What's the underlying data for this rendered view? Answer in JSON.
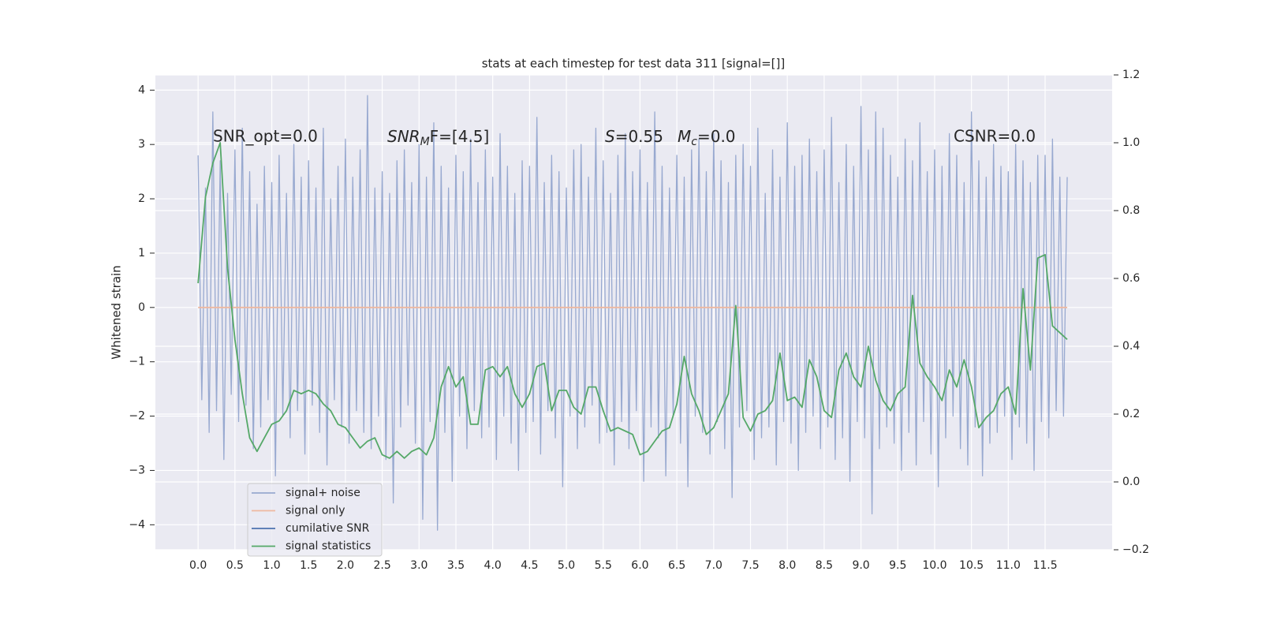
{
  "chart_data": {
    "type": "line",
    "title": "stats at each timestep for test data 311 [signal=[]]",
    "ylabel": "Whitened strain",
    "annotations": [
      [
        "SNR_opt=0.0"
      ],
      [
        "SNR",
        "M",
        "F=[4.5]"
      ],
      [
        "S",
        "=0.55"
      ],
      [
        "M",
        "c",
        "=0.0"
      ],
      [
        "CSNR=0.0"
      ]
    ],
    "xlim": [
      -0.58,
      12.41
    ],
    "ylim": [
      -4.46,
      4.28
    ],
    "y2lim": [
      -0.2,
      1.2
    ],
    "xticks": [
      {
        "value": 0,
        "label": "0.0"
      },
      0.5,
      {
        "value": 1,
        "label": "1.0"
      },
      1.5,
      {
        "value": 2,
        "label": "2.0"
      },
      2.5,
      {
        "value": 3,
        "label": "3.0"
      },
      3.5,
      {
        "value": 4,
        "label": "4.0"
      },
      4.5,
      {
        "value": 5,
        "label": "5.0"
      },
      5.5,
      {
        "value": 6,
        "label": "6.0"
      },
      6.5,
      {
        "value": 7,
        "label": "7.0"
      },
      7.5,
      {
        "value": 8,
        "label": "8.0"
      },
      8.5,
      {
        "value": 9,
        "label": "9.0"
      },
      9.5,
      {
        "value": 10,
        "label": "10.0"
      },
      10.5,
      {
        "value": 11,
        "label": "11.0"
      },
      11.5
    ],
    "yticks": [
      {
        "value": -4,
        "label": "−4"
      },
      {
        "value": -3,
        "label": "−3"
      },
      {
        "value": -2,
        "label": "−2"
      },
      {
        "value": -1,
        "label": "−1"
      },
      0,
      1,
      2,
      3,
      4
    ],
    "y2ticks": [
      {
        "value": -0.2,
        "label": "−0.2"
      },
      {
        "value": 0,
        "label": "0.0"
      },
      0.2,
      0.4,
      0.6,
      0.8,
      {
        "value": 1,
        "label": "1.0"
      },
      1.2
    ],
    "grid": true,
    "legend": "lower left",
    "series": [
      {
        "name": "signal+ noise",
        "color": "#98a9d0",
        "x": [
          0,
          0.05,
          0.1,
          0.15,
          0.2,
          0.25,
          0.3,
          0.35,
          0.4,
          0.45,
          0.5,
          0.55,
          0.6,
          0.65,
          0.7,
          0.75,
          0.8,
          0.85,
          0.9,
          0.95,
          1,
          1.05,
          1.1,
          1.15,
          1.2,
          1.25,
          1.3,
          1.35,
          1.4,
          1.45,
          1.5,
          1.55,
          1.6,
          1.65,
          1.7,
          1.75,
          1.8,
          1.85,
          1.9,
          1.95,
          2,
          2.05,
          2.1,
          2.15,
          2.2,
          2.25,
          2.3,
          2.35,
          2.4,
          2.45,
          2.5,
          2.55,
          2.6,
          2.65,
          2.7,
          2.75,
          2.8,
          2.85,
          2.9,
          2.95,
          3,
          3.05,
          3.1,
          3.15,
          3.2,
          3.25,
          3.3,
          3.35,
          3.4,
          3.45,
          3.5,
          3.55,
          3.6,
          3.65,
          3.7,
          3.75,
          3.8,
          3.85,
          3.9,
          3.95,
          4,
          4.05,
          4.1,
          4.15,
          4.2,
          4.25,
          4.3,
          4.35,
          4.4,
          4.45,
          4.5,
          4.55,
          4.6,
          4.65,
          4.7,
          4.75,
          4.8,
          4.85,
          4.9,
          4.95,
          5,
          5.05,
          5.1,
          5.15,
          5.2,
          5.25,
          5.3,
          5.35,
          5.4,
          5.45,
          5.5,
          5.55,
          5.6,
          5.65,
          5.7,
          5.75,
          5.8,
          5.85,
          5.9,
          5.95,
          6,
          6.05,
          6.1,
          6.15,
          6.2,
          6.25,
          6.3,
          6.35,
          6.4,
          6.45,
          6.5,
          6.55,
          6.6,
          6.65,
          6.7,
          6.75,
          6.8,
          6.85,
          6.9,
          6.95,
          7,
          7.05,
          7.1,
          7.15,
          7.2,
          7.25,
          7.3,
          7.35,
          7.4,
          7.45,
          7.5,
          7.55,
          7.6,
          7.65,
          7.7,
          7.75,
          7.8,
          7.85,
          7.9,
          7.95,
          8,
          8.05,
          8.1,
          8.15,
          8.2,
          8.25,
          8.3,
          8.35,
          8.4,
          8.45,
          8.5,
          8.55,
          8.6,
          8.65,
          8.7,
          8.75,
          8.8,
          8.85,
          8.9,
          8.95,
          9,
          9.05,
          9.1,
          9.15,
          9.2,
          9.25,
          9.3,
          9.35,
          9.4,
          9.45,
          9.5,
          9.55,
          9.6,
          9.65,
          9.7,
          9.75,
          9.8,
          9.85,
          9.9,
          9.95,
          10,
          10.05,
          10.1,
          10.15,
          10.2,
          10.25,
          10.3,
          10.35,
          10.4,
          10.45,
          10.5,
          10.55,
          10.6,
          10.65,
          10.7,
          10.75,
          10.8,
          10.85,
          10.9,
          10.95,
          11,
          11.05,
          11.1,
          11.15,
          11.2,
          11.25,
          11.3,
          11.35,
          11.4,
          11.45,
          11.5,
          11.55,
          11.6,
          11.65,
          11.7,
          11.75,
          11.8
        ],
        "values": [
          2.8,
          -1.7,
          2.2,
          -2.3,
          3.6,
          -1.9,
          2.7,
          -2.8,
          2.1,
          -1.6,
          2.9,
          -2.1,
          3.3,
          -1.8,
          2.5,
          -2.6,
          1.9,
          -2.2,
          2.6,
          -1.7,
          2.3,
          -3.1,
          2.8,
          -2.0,
          2.1,
          -2.4,
          3.0,
          -1.9,
          2.4,
          -2.7,
          2.7,
          -1.8,
          2.2,
          -2.3,
          3.3,
          -2.9,
          2.0,
          -1.7,
          2.6,
          -2.2,
          3.1,
          -2.5,
          2.4,
          -1.9,
          2.9,
          -2.3,
          3.9,
          -2.6,
          2.2,
          -2.0,
          2.5,
          -2.8,
          2.1,
          -3.6,
          2.7,
          -2.2,
          2.9,
          -1.8,
          2.3,
          -2.5,
          3.0,
          -3.9,
          2.4,
          -2.1,
          3.4,
          -4.1,
          2.6,
          -2.3,
          2.2,
          -3.2,
          2.8,
          -2.0,
          2.5,
          -2.6,
          3.1,
          -1.9,
          2.3,
          -2.4,
          2.9,
          -2.2,
          2.4,
          -2.8,
          3.2,
          -2.0,
          2.6,
          -2.5,
          2.1,
          -3.0,
          2.7,
          -2.3,
          2.6,
          -2.1,
          3.5,
          -2.7,
          2.3,
          -1.9,
          2.8,
          -2.4,
          2.5,
          -3.3,
          2.2,
          -2.0,
          2.9,
          -2.6,
          3.0,
          -2.2,
          2.4,
          -1.8,
          3.3,
          -2.5,
          2.7,
          -2.3,
          2.1,
          -2.9,
          2.8,
          -2.1,
          3.2,
          -2.6,
          2.5,
          -1.9,
          2.9,
          -3.2,
          2.3,
          -2.2,
          3.6,
          -2.4,
          2.6,
          -3.1,
          2.2,
          -2.0,
          2.8,
          -2.5,
          2.4,
          -3.3,
          2.9,
          -2.0,
          3.1,
          -2.3,
          2.5,
          -2.7,
          3.2,
          -2.1,
          2.7,
          -2.6,
          2.3,
          -3.5,
          2.8,
          -2.2,
          3.0,
          -1.9,
          2.6,
          -2.8,
          3.3,
          -2.4,
          2.1,
          -2.2,
          2.9,
          -2.9,
          2.4,
          -2.1,
          3.4,
          -2.5,
          2.6,
          -3.0,
          2.8,
          -2.3,
          3.1,
          -2.0,
          2.5,
          -2.6,
          2.9,
          -2.2,
          3.5,
          -2.8,
          2.3,
          -2.4,
          3.0,
          -3.2,
          2.6,
          -2.1,
          3.7,
          -2.4,
          2.9,
          -3.8,
          3.6,
          -2.6,
          3.3,
          -2.2,
          2.8,
          -2.5,
          2.4,
          -3.0,
          3.1,
          -2.3,
          2.7,
          -2.9,
          3.4,
          -2.1,
          2.5,
          -2.7,
          2.9,
          -3.3,
          2.6,
          -2.4,
          3.2,
          -2.0,
          2.8,
          -2.6,
          2.3,
          -2.9,
          3.6,
          -2.2,
          2.7,
          -3.1,
          2.4,
          -2.5,
          3.0,
          -2.3,
          2.6,
          -2.0,
          2.5,
          -2.8,
          3.0,
          -2.2,
          2.7,
          -2.5,
          2.3,
          -3.0,
          2.8,
          -2.1,
          2.8,
          -2.4,
          3.1,
          -1.9,
          2.4,
          -2.0,
          2.4
        ]
      },
      {
        "name": "signal only",
        "color": "#eeb8a0",
        "x": [
          0,
          11.8
        ],
        "values": [
          0,
          0
        ]
      },
      {
        "name": "cumilative SNR",
        "color": "#4c72b0",
        "x": [],
        "values": []
      },
      {
        "name": "signal statistics",
        "color": "#55a868",
        "axis": "y2",
        "x": [
          0,
          0.1,
          0.2,
          0.3,
          0.4,
          0.5,
          0.6,
          0.7,
          0.8,
          0.9,
          1,
          1.1,
          1.2,
          1.3,
          1.4,
          1.5,
          1.6,
          1.7,
          1.8,
          1.9,
          2,
          2.1,
          2.2,
          2.3,
          2.4,
          2.5,
          2.6,
          2.7,
          2.8,
          2.9,
          3,
          3.1,
          3.2,
          3.3,
          3.4,
          3.5,
          3.6,
          3.7,
          3.8,
          3.9,
          4,
          4.1,
          4.2,
          4.3,
          4.4,
          4.5,
          4.6,
          4.7,
          4.8,
          4.9,
          5,
          5.1,
          5.2,
          5.3,
          5.4,
          5.5,
          5.6,
          5.7,
          5.8,
          5.9,
          6,
          6.1,
          6.2,
          6.3,
          6.4,
          6.5,
          6.6,
          6.7,
          6.8,
          6.9,
          7,
          7.1,
          7.2,
          7.3,
          7.4,
          7.5,
          7.6,
          7.7,
          7.8,
          7.9,
          8,
          8.1,
          8.2,
          8.3,
          8.4,
          8.5,
          8.6,
          8.7,
          8.8,
          8.9,
          9,
          9.1,
          9.2,
          9.3,
          9.4,
          9.5,
          9.6,
          9.7,
          9.8,
          9.9,
          10,
          10.1,
          10.2,
          10.3,
          10.4,
          10.5,
          10.6,
          10.7,
          10.8,
          10.9,
          11,
          11.1,
          11.2,
          11.3,
          11.4,
          11.5,
          11.6,
          11.7,
          11.8
        ],
        "values": [
          0.586,
          0.84,
          0.94,
          1.0,
          0.63,
          0.42,
          0.26,
          0.13,
          0.09,
          0.13,
          0.17,
          0.18,
          0.21,
          0.27,
          0.26,
          0.27,
          0.26,
          0.23,
          0.21,
          0.17,
          0.16,
          0.13,
          0.1,
          0.12,
          0.13,
          0.08,
          0.07,
          0.09,
          0.07,
          0.09,
          0.1,
          0.08,
          0.13,
          0.28,
          0.34,
          0.28,
          0.31,
          0.17,
          0.17,
          0.33,
          0.34,
          0.31,
          0.34,
          0.26,
          0.22,
          0.26,
          0.34,
          0.35,
          0.21,
          0.27,
          0.27,
          0.22,
          0.2,
          0.28,
          0.28,
          0.21,
          0.15,
          0.16,
          0.15,
          0.14,
          0.08,
          0.09,
          0.12,
          0.15,
          0.16,
          0.23,
          0.37,
          0.26,
          0.21,
          0.14,
          0.16,
          0.21,
          0.26,
          0.52,
          0.19,
          0.15,
          0.2,
          0.21,
          0.24,
          0.38,
          0.24,
          0.25,
          0.22,
          0.36,
          0.31,
          0.21,
          0.19,
          0.33,
          0.38,
          0.31,
          0.28,
          0.4,
          0.3,
          0.24,
          0.21,
          0.26,
          0.28,
          0.55,
          0.35,
          0.31,
          0.28,
          0.24,
          0.33,
          0.28,
          0.36,
          0.28,
          0.16,
          0.19,
          0.21,
          0.26,
          0.28,
          0.2,
          0.57,
          0.33,
          0.66,
          0.67,
          0.46,
          0.44,
          0.42
        ]
      }
    ]
  }
}
